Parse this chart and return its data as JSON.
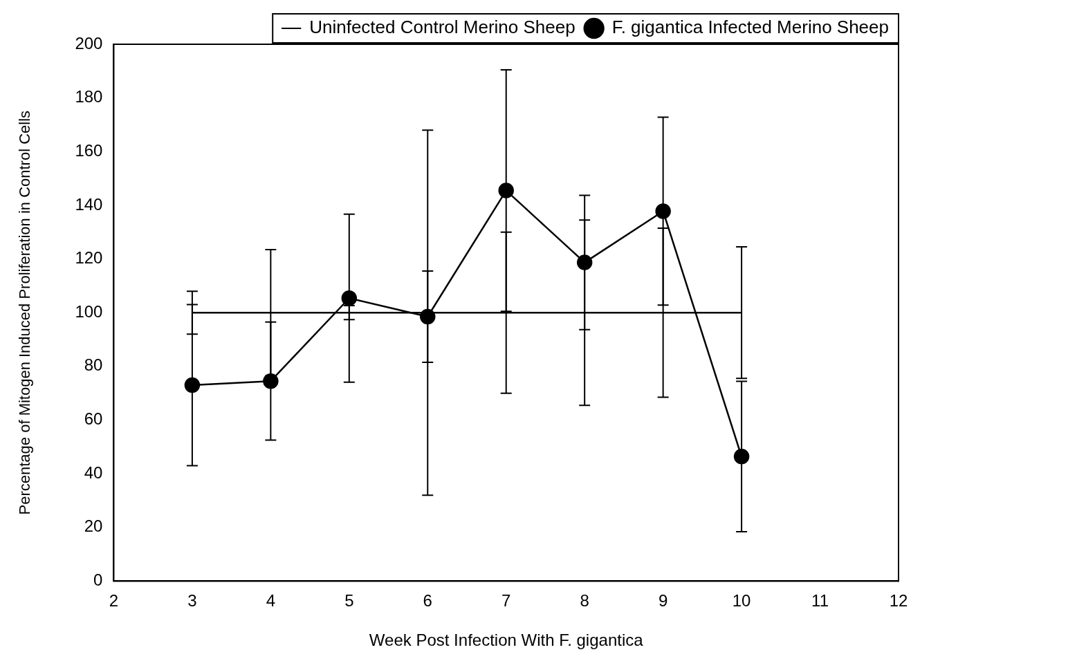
{
  "chart_data": {
    "type": "line",
    "xlabel": "Week Post Infection With F. gigantica",
    "ylabel": "Percentage of Mitogen Induced Proliferation in Control Cells",
    "x": [
      3,
      4,
      5,
      6,
      7,
      8,
      9,
      10
    ],
    "series": [
      {
        "name": "Uninfected Control Merino Sheep",
        "color": "#000000",
        "marker": "none",
        "values": [
          100,
          100,
          100,
          100,
          100,
          100,
          100,
          100
        ],
        "errors": [
          8,
          23.5,
          2.6,
          68,
          30,
          34.5,
          31.5,
          24.5
        ]
      },
      {
        "name": "F. gigantica Infected Merino Sheep",
        "color": "#000000",
        "marker": "circle",
        "values": [
          73,
          74.5,
          105.4,
          98.5,
          145.5,
          118.7,
          137.8,
          46.4
        ],
        "errors": [
          30,
          22,
          31.3,
          17,
          45,
          25,
          35,
          28
        ]
      }
    ],
    "xlim": [
      2,
      12
    ],
    "xticks": [
      2,
      3,
      4,
      5,
      6,
      7,
      8,
      9,
      10,
      11,
      12
    ],
    "ylim": [
      0,
      200
    ],
    "yticks": [
      0,
      20,
      40,
      60,
      80,
      100,
      120,
      140,
      160,
      180,
      200
    ],
    "grid": false,
    "legend": "top right",
    "line_style": "solid"
  }
}
